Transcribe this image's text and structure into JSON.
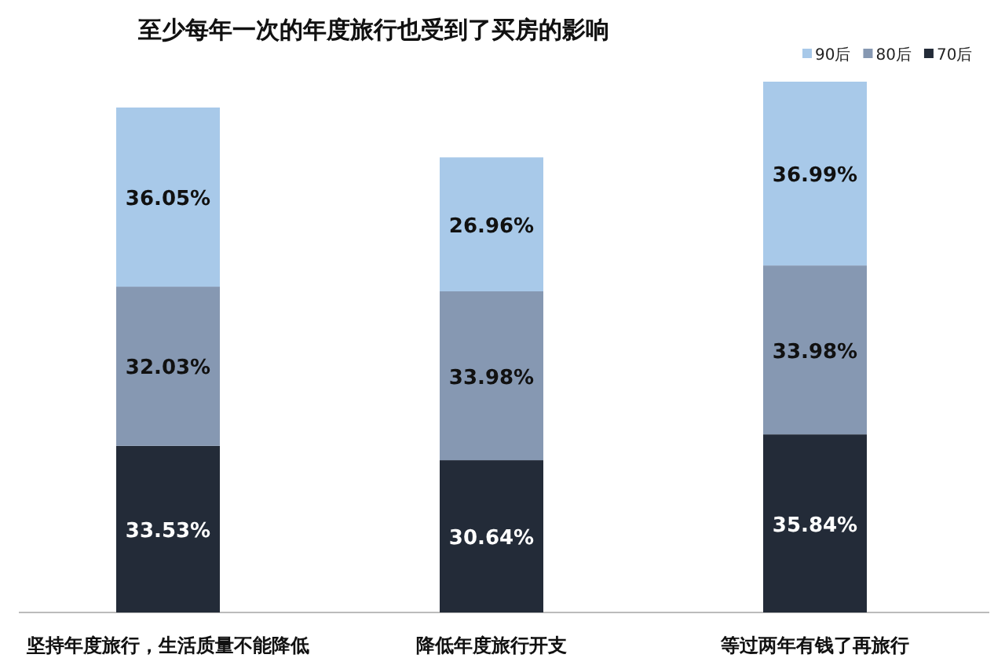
{
  "chart_data": {
    "type": "bar",
    "stacked": true,
    "title": "至少每年一次的年度旅行也受到了买房的影响",
    "categories": [
      "坚持年度旅行，生活质量不能降低",
      "降低年度旅行开支",
      "等过两年有钱了再旅行"
    ],
    "series": [
      {
        "name": "70后",
        "color": "#232b38",
        "values": [
          33.53,
          30.64,
          35.84
        ],
        "value_labels": [
          "33.53%",
          "30.64%",
          "35.84%"
        ]
      },
      {
        "name": "80后",
        "color": "#8698b2",
        "values": [
          32.03,
          33.98,
          33.98
        ],
        "value_labels": [
          "32.03%",
          "33.98%",
          "33.98%"
        ]
      },
      {
        "name": "90后",
        "color": "#a8c9e9",
        "values": [
          36.05,
          26.96,
          36.99
        ],
        "value_labels": [
          "36.05%",
          "26.96%",
          "36.99%"
        ]
      }
    ],
    "legend": "top right"
  }
}
